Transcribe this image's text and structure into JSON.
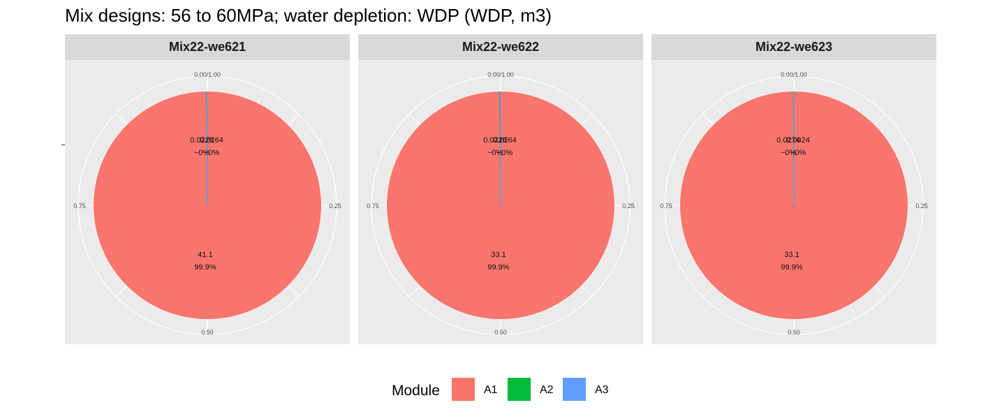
{
  "title": "Mix designs: 56 to 60MPa; water depletion: WDP (WDP, m3)",
  "legend": {
    "title": "Module",
    "items": [
      {
        "label": "A1",
        "color": "#F8766D"
      },
      {
        "label": "A2",
        "color": "#00BA38"
      },
      {
        "label": "A3",
        "color": "#619CFF"
      }
    ]
  },
  "chart_data": [
    {
      "type": "pie",
      "panel": "Mix22-we621",
      "angle_ticks": [
        "0.00/1.00",
        "0.25",
        "0.50",
        "0.75"
      ],
      "slices": [
        {
          "module": "A1",
          "value": 41.1,
          "label": "41.1",
          "percent": "99.9%"
        },
        {
          "module": "A2",
          "value": 0.0226,
          "label": "0.0226",
          "percent": "~0%"
        },
        {
          "module": "A3",
          "value": 0.0264,
          "label": "0.0264",
          "percent": "~0%"
        }
      ]
    },
    {
      "type": "pie",
      "panel": "Mix22-we622",
      "angle_ticks": [
        "0.00/1.00",
        "0.25",
        "0.50",
        "0.75"
      ],
      "slices": [
        {
          "module": "A1",
          "value": 33.1,
          "label": "33.1",
          "percent": "99.9%"
        },
        {
          "module": "A2",
          "value": 0.0226,
          "label": "0.0226",
          "percent": "~0%"
        },
        {
          "module": "A3",
          "value": 0.0264,
          "label": "0.0264",
          "percent": "~0%"
        }
      ]
    },
    {
      "type": "pie",
      "panel": "Mix22-we623",
      "angle_ticks": [
        "0.00/1.00",
        "0.25",
        "0.50",
        "0.75"
      ],
      "slices": [
        {
          "module": "A1",
          "value": 33.1,
          "label": "33.1",
          "percent": "99.9%"
        },
        {
          "module": "A2",
          "value": 0.0274,
          "label": "0.0274",
          "percent": "~0%"
        },
        {
          "module": "A3",
          "value": 0.0024,
          "label": "0.0024",
          "percent": "~0%"
        }
      ]
    }
  ]
}
